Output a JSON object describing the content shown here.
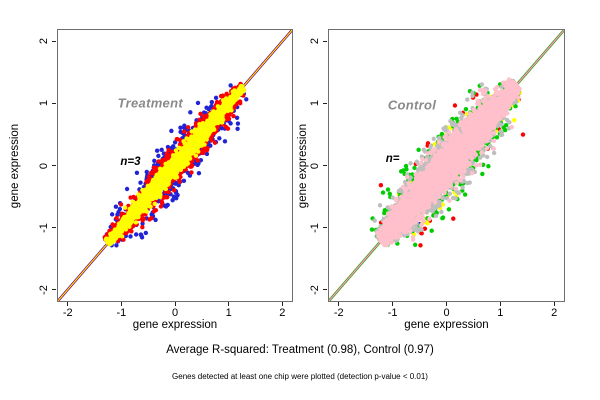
{
  "figure": {
    "caption_r_squared": "Average R-squared: Treatment (0.98), Control (0.97)",
    "caption_note": "Genes detected at least one chip were plotted (detection p-value < 0.01)"
  },
  "chart_data": [
    {
      "type": "scatter",
      "panel": "treatment",
      "r_squared": 0.98,
      "xlabel": "gene expression",
      "ylabel": "gene expression",
      "xlim": [
        -2.2,
        2.2
      ],
      "ylim": [
        -2.2,
        2.2
      ],
      "xticks": [
        -2,
        -1,
        0,
        1,
        2
      ],
      "yticks": [
        -2,
        -1,
        0,
        1,
        2
      ],
      "grid": false,
      "point_radius": 2.2,
      "seed": 7,
      "identity_lines": [
        {
          "color": "#2323D6",
          "width": 2.6
        },
        {
          "color": "#FF0000",
          "width": 1.7
        },
        {
          "color": "#FFFF00",
          "width": 0.9
        }
      ],
      "cloud": {
        "t_range": [
          -1.25,
          1.27
        ],
        "along_sd": 0.55,
        "t_uniform_frac": 0.35,
        "taper": 1.32
      },
      "series": [
        {
          "name": "chip-pair-blue",
          "color": "#2323D6",
          "n": 650,
          "perp_sd": 0.14,
          "outliers": {
            "n": 42,
            "perp_min": 0.18,
            "perp_max": 0.42,
            "t_range": [
              -0.9,
              1.0
            ]
          }
        },
        {
          "name": "chip-pair-red",
          "color": "#FF0000",
          "n": 1500,
          "perp_sd": 0.085,
          "outliers": {
            "n": 55,
            "perp_min": 0.12,
            "perp_max": 0.3,
            "t_range": [
              -0.9,
              1.0
            ]
          }
        },
        {
          "name": "chip-pair-yellow",
          "color": "#FFFF00",
          "n": 2400,
          "perp_sd": 0.05,
          "outliers": {
            "n": 20,
            "perp_min": 0.08,
            "perp_max": 0.18,
            "t_range": [
              -0.9,
              1.0
            ]
          }
        }
      ],
      "annotations": [
        {
          "text": "Treatment",
          "x": -0.46,
          "y": 1.0,
          "color": "#8a8a8a"
        },
        {
          "text": "n=3",
          "x": -0.83,
          "y": 0.05,
          "color": "#000000"
        }
      ]
    },
    {
      "type": "scatter",
      "panel": "control",
      "r_squared": 0.97,
      "xlabel": "gene expression",
      "ylabel": "gene expression",
      "xlim": [
        -2.2,
        2.2
      ],
      "ylim": [
        -2.2,
        2.2
      ],
      "xticks": [
        -2,
        -1,
        0,
        1,
        2
      ],
      "yticks": [
        -2,
        -1,
        0,
        1,
        2
      ],
      "grid": false,
      "point_radius": 2.2,
      "seed": 21,
      "identity_lines": [
        {
          "color": "#00CD00",
          "width": 2.6
        },
        {
          "color": "#D2416E",
          "width": 1.6
        },
        {
          "color": "#FFC0CB",
          "width": 0.8
        }
      ],
      "cloud": {
        "t_range": [
          -1.22,
          1.3
        ],
        "along_sd": 0.55,
        "t_uniform_frac": 0.35,
        "taper": 1.35
      },
      "series": [
        {
          "name": "chip-pair-blue",
          "color": "#2323D6",
          "n": 90,
          "perp_sd": 0.12,
          "outliers": {
            "n": 6,
            "perp_min": 0.2,
            "perp_max": 0.45,
            "t_range": [
              -0.9,
              1.0
            ]
          }
        },
        {
          "name": "chip-pair-red",
          "color": "#FF0000",
          "n": 160,
          "perp_sd": 0.17,
          "outliers": {
            "n": 12,
            "perp_min": 0.3,
            "perp_max": 0.7,
            "t_range": [
              -0.9,
              1.0
            ]
          }
        },
        {
          "name": "chip-pair-yellow",
          "color": "#FFFF00",
          "n": 420,
          "perp_sd": 0.15,
          "outliers": {
            "n": 15,
            "perp_min": 0.2,
            "perp_max": 0.45,
            "t_range": [
              -0.9,
              1.0
            ]
          }
        },
        {
          "name": "chip-pair-white",
          "color": "#FFFFFF",
          "n": 200,
          "perp_sd": 0.16,
          "outliers": {
            "n": 10,
            "perp_min": 0.2,
            "perp_max": 0.4,
            "t_range": [
              -0.9,
              1.0
            ]
          }
        },
        {
          "name": "chip-pair-green",
          "color": "#00CD00",
          "n": 800,
          "perp_sd": 0.18,
          "outliers": {
            "n": 60,
            "perp_min": 0.2,
            "perp_max": 0.55,
            "t_range": [
              -0.95,
              1.0
            ]
          }
        },
        {
          "name": "chip-pair-gray",
          "color": "#BEBEBE",
          "n": 1900,
          "perp_sd": 0.15,
          "outliers": {
            "n": 80,
            "perp_min": 0.2,
            "perp_max": 0.5,
            "t_range": [
              -0.95,
              1.0
            ]
          }
        },
        {
          "name": "chip-pair-pink",
          "color": "#FFC0CB",
          "n": 3300,
          "perp_sd": 0.11,
          "outliers": {
            "n": 70,
            "perp_min": 0.15,
            "perp_max": 0.45,
            "t_range": [
              -0.95,
              1.0
            ]
          }
        }
      ],
      "annotations": [
        {
          "text": "Control",
          "x": -0.64,
          "y": 0.98,
          "color": "#8a8a8a"
        },
        {
          "text": "n=",
          "x": -1.0,
          "y": 0.1,
          "color": "#000000"
        }
      ]
    }
  ]
}
